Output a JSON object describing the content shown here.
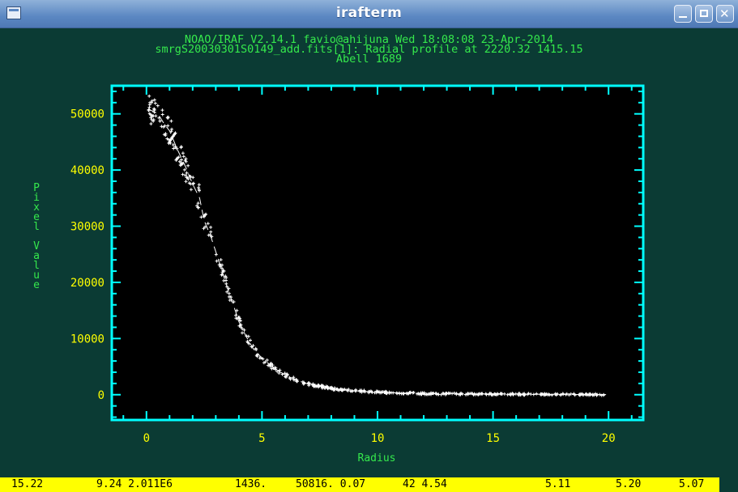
{
  "window": {
    "title": "irafterm"
  },
  "header": {
    "line1": "NOAO/IRAF V2.14.1 favio@ahijuna Wed 18:08:08 23-Apr-2014",
    "line2": "smrgS20030301S0149_add.fits[1]: Radial profile at 2220.32 1415.15",
    "line3": "Abell 1689"
  },
  "colors": {
    "axes": "#00ffff",
    "tick_labels": "#ffff00",
    "axis_titles": "#35e84c",
    "points": "#ffffff",
    "background": "#000000",
    "status_bar": "#ffff00"
  },
  "chart_data": {
    "type": "scatter",
    "xlabel": "Radius",
    "ylabel": "Pixel Value",
    "xlim": [
      -1.5,
      21.5
    ],
    "ylim": [
      -4500,
      55000
    ],
    "xticks": [
      "0",
      "5",
      "10",
      "15",
      "20"
    ],
    "yticks": [
      "0",
      "10000",
      "20000",
      "30000",
      "40000",
      "50000"
    ],
    "grid": false,
    "legend": "none",
    "profile": [
      {
        "x": 0.1,
        "y": 50816
      },
      {
        "x": 0.5,
        "y": 50000
      },
      {
        "x": 0.8,
        "y": 48000
      },
      {
        "x": 1.0,
        "y": 47000
      },
      {
        "x": 1.3,
        "y": 44000
      },
      {
        "x": 1.7,
        "y": 40500
      },
      {
        "x": 2.0,
        "y": 37500
      },
      {
        "x": 2.3,
        "y": 35000
      },
      {
        "x": 2.5,
        "y": 31000
      },
      {
        "x": 2.8,
        "y": 28000
      },
      {
        "x": 3.0,
        "y": 25500
      },
      {
        "x": 3.2,
        "y": 23000
      },
      {
        "x": 3.5,
        "y": 19000
      },
      {
        "x": 3.8,
        "y": 15500
      },
      {
        "x": 4.0,
        "y": 13000
      },
      {
        "x": 4.3,
        "y": 10500
      },
      {
        "x": 4.6,
        "y": 8300
      },
      {
        "x": 5.0,
        "y": 6500
      },
      {
        "x": 5.5,
        "y": 4800
      },
      {
        "x": 6.0,
        "y": 3500
      },
      {
        "x": 6.5,
        "y": 2600
      },
      {
        "x": 7.0,
        "y": 1900
      },
      {
        "x": 8.0,
        "y": 1100
      },
      {
        "x": 9.0,
        "y": 700
      },
      {
        "x": 10.0,
        "y": 450
      },
      {
        "x": 12.0,
        "y": 200
      },
      {
        "x": 14.0,
        "y": 120
      },
      {
        "x": 16.0,
        "y": 80
      },
      {
        "x": 18.0,
        "y": 50
      },
      {
        "x": 20.0,
        "y": 30
      }
    ]
  },
  "status_bar": {
    "values": [
      "15.22",
      "9.24 2.011E6",
      "1436.",
      "50816. 0.07",
      "42 4.54",
      "5.11",
      "5.20",
      "5.07"
    ]
  }
}
